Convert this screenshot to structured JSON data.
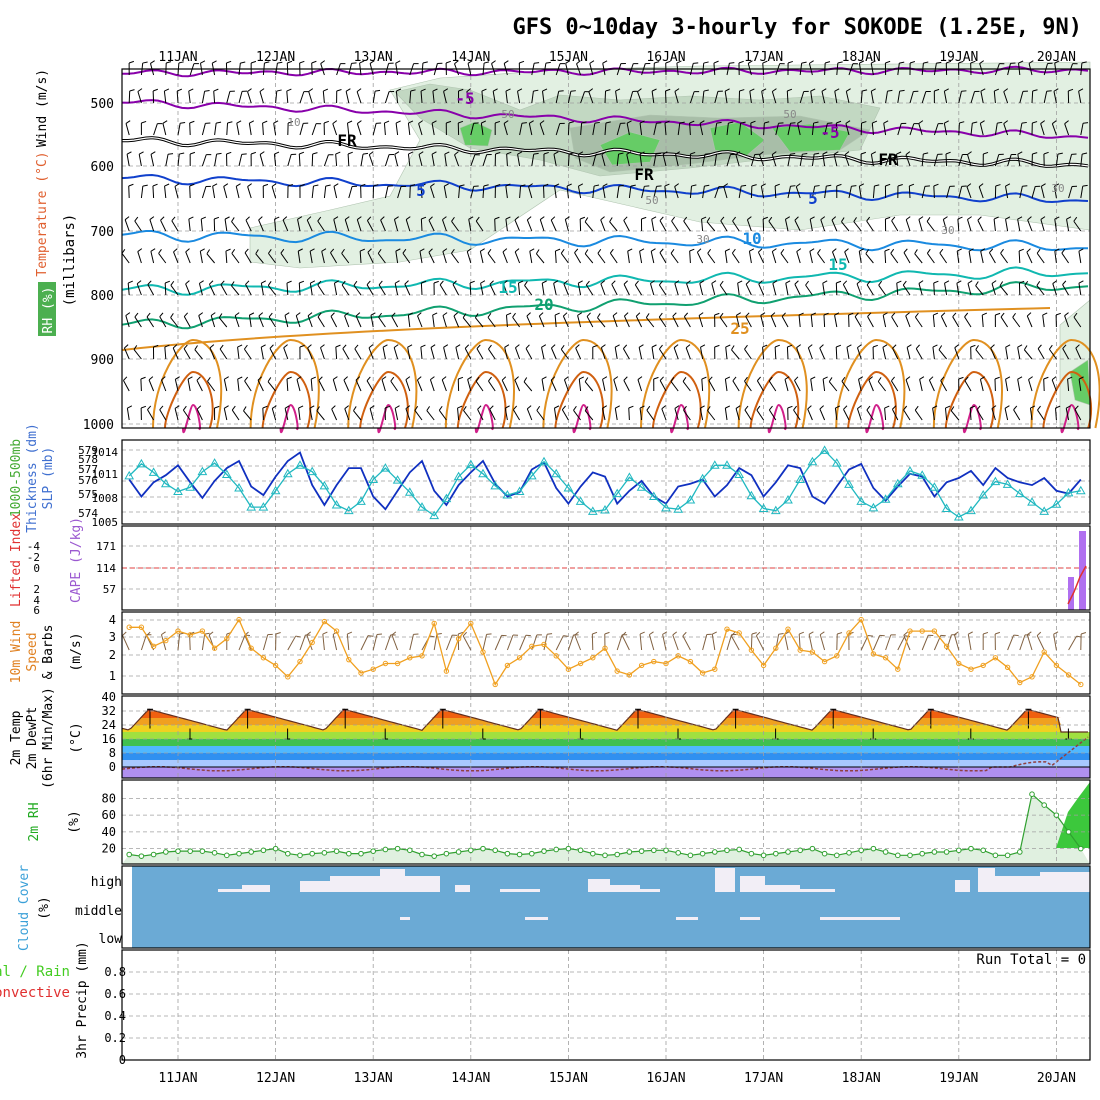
{
  "title": "GFS 0~10day 3-hourly for SOKODE (1.25E, 9N)",
  "colors": {
    "frame": "#000000",
    "grid": "#a0a0a0",
    "rh_fill_light": "#e2f0e2",
    "rh_fill_mid": "#c2d8c2",
    "rh_fill_dark": "#a8bea8",
    "rh_fill_green": "#66cc66",
    "temp_purple": "#8800aa",
    "temp_blue": "#1040cc",
    "temp_lightblue": "#1a8ae0",
    "temp_teal": "#10b8b0",
    "temp_green": "#10a070",
    "temp_orange": "#e09020",
    "temp_dorange": "#d06010",
    "temp_magenta": "#d0208a",
    "thickness_line": "#1030c0",
    "slp_line": "#20b8c0",
    "zero_line": "#e04040",
    "cape_bar": "#b070f0",
    "wind_speed": "#f0a020",
    "wind_barb": "#806040",
    "dewpoint": "#904040",
    "rh2m_line": "#30a030",
    "rh2m_fill": "#e0f0e0",
    "cloud_bg": "#6baad5",
    "cloud_bar": "#f2eef6",
    "label_green": "#22aa22",
    "label_orange": "#e08020",
    "label_purple": "#9b59d0",
    "label_blue": "#4070d0",
    "label_red": "#e03030",
    "label_lime": "#44cc22",
    "label_sky": "#3aa0d8"
  },
  "x_ticks": [
    "11JAN",
    "12JAN",
    "13JAN",
    "14JAN",
    "15JAN",
    "16JAN",
    "17JAN",
    "18JAN",
    "19JAN",
    "20JAN"
  ],
  "panels": {
    "upper_air": {
      "ylabels": [
        "Wind (m/s)",
        "Temperature (°C)",
        "RH (%)",
        "(millibars)"
      ],
      "yticks": [
        "500",
        "600",
        "700",
        "800",
        "900",
        "1000"
      ],
      "contour_labels": [
        "-5",
        "-5",
        "FR",
        "FR",
        "FR",
        "-5",
        "5",
        "5",
        "10",
        "15",
        "15",
        "20",
        "25",
        "10",
        "50",
        "50",
        "50",
        "30",
        "30",
        "30",
        "-5"
      ]
    },
    "thickness": {
      "ylabels": [
        "1000-500mb",
        "Thickness (dm)",
        "SLP (mb)"
      ],
      "yticks_left": [
        "579",
        "578",
        "577",
        "576",
        "575",
        "574"
      ],
      "yticks_right": [
        "1014",
        "1011",
        "1008",
        "1005"
      ]
    },
    "li_cape": {
      "ylabels": [
        "Lifted Index",
        "CAPE (J/kg)"
      ],
      "yticks_left": [
        "-4",
        "-2",
        "0",
        "2",
        "4",
        "6"
      ],
      "yticks_right": [
        "171",
        "114",
        "57"
      ]
    },
    "wind10m": {
      "ylabels": [
        "10m Wind",
        "Speed",
        "& Barbs",
        "(m/s)"
      ],
      "yticks": [
        "4",
        "3",
        "2",
        "1"
      ]
    },
    "temp2m": {
      "ylabels": [
        "2m Temp",
        "2m DewPt",
        "(6hr Min/Max)",
        "(°C)"
      ],
      "yticks": [
        "40",
        "32",
        "24",
        "16",
        "8",
        "0"
      ]
    },
    "rh2m": {
      "ylabels": [
        "2m RH",
        "(%)"
      ],
      "yticks": [
        "80",
        "60",
        "40",
        "20"
      ]
    },
    "cloud": {
      "ylabels": [
        "Cloud Cover",
        "(%)"
      ],
      "levels": [
        "high",
        "middle",
        "low"
      ]
    },
    "precip": {
      "ylabels": [
        "Total / Rain",
        "Convective",
        "3hr Precip (mm)"
      ],
      "yticks": [
        "0.8",
        "0.6",
        "0.4",
        "0.2",
        "0"
      ],
      "run_total": "Run Total = 0"
    }
  },
  "chart_data": [
    {
      "type": "line",
      "name": "1000-500mb thickness",
      "x": [
        "10JAN12",
        "10JAN15",
        "10JAN18",
        "10JAN21",
        "11JAN00",
        "11JAN03",
        "11JAN06",
        "11JAN09",
        "11JAN12",
        "11JAN15",
        "11JAN18",
        "11JAN21",
        "12JAN00",
        "12JAN03",
        "12JAN06",
        "12JAN09",
        "12JAN12",
        "12JAN15",
        "12JAN18",
        "12JAN21",
        "13JAN00",
        "13JAN03",
        "13JAN06",
        "13JAN09",
        "13JAN12",
        "13JAN15",
        "13JAN18",
        "13JAN21",
        "14JAN00",
        "14JAN03",
        "14JAN06",
        "14JAN09",
        "14JAN12",
        "14JAN15",
        "14JAN18",
        "14JAN21",
        "15JAN00",
        "15JAN03",
        "15JAN06",
        "15JAN09",
        "15JAN12",
        "15JAN15",
        "15JAN18",
        "15JAN21",
        "16JAN00",
        "16JAN03",
        "16JAN06",
        "16JAN09",
        "16JAN12",
        "16JAN15",
        "16JAN18",
        "16JAN21",
        "17JAN00",
        "17JAN03",
        "17JAN06",
        "17JAN09",
        "17JAN12",
        "17JAN15",
        "17JAN18",
        "17JAN21",
        "18JAN00",
        "18JAN03",
        "18JAN06",
        "18JAN09",
        "18JAN12",
        "18JAN15",
        "18JAN18",
        "18JAN21",
        "19JAN00",
        "19JAN03",
        "19JAN06",
        "19JAN09",
        "19JAN12",
        "19JAN15",
        "19JAN18",
        "19JAN21",
        "20JAN00",
        "20JAN03",
        "20JAN06"
      ],
      "values": [
        577.0,
        575.8,
        576.8,
        577.3,
        578.0,
        576.8,
        575.7,
        576.9,
        577.8,
        578.3,
        576.5,
        575.9,
        577.2,
        578.3,
        578.9,
        576.6,
        575.2,
        576.6,
        577.8,
        577.8,
        575.8,
        574.9,
        576.2,
        577.5,
        578.3,
        576.2,
        575.2,
        576.6,
        577.5,
        578.3,
        576.7,
        575.8,
        576.1,
        577.7,
        578.2,
        576.4,
        575.3,
        576.5,
        577.5,
        577.2,
        575.3,
        576.2,
        576.9,
        575.8,
        575.3,
        576.5,
        576.7,
        577.0,
        575.8,
        576.6,
        577.8,
        577.3,
        575.8,
        576.8,
        578.0,
        577.8,
        575.8,
        575.3,
        576.5,
        577.7,
        578.1,
        576.4,
        575.5,
        576.5,
        577.4,
        577.2,
        575.8,
        576.8,
        577.1,
        577.6,
        576.6,
        577.8,
        577.1,
        576.8,
        576.6,
        577.1,
        576.2,
        576.0,
        577.0
      ],
      "ylabel": "1000-500mb Thickness (dm)",
      "ylim": [
        574,
        579.5
      ]
    },
    {
      "type": "line",
      "name": "SLP",
      "x": [
        "10JAN12",
        "10JAN15",
        "10JAN18",
        "10JAN21",
        "11JAN00",
        "11JAN03",
        "11JAN06",
        "11JAN09",
        "11JAN12",
        "11JAN15",
        "11JAN18",
        "11JAN21",
        "12JAN00",
        "12JAN03",
        "12JAN06",
        "12JAN09",
        "12JAN12",
        "12JAN15",
        "12JAN18",
        "12JAN21",
        "13JAN00",
        "13JAN03",
        "13JAN06",
        "13JAN09",
        "13JAN12",
        "13JAN15",
        "13JAN18",
        "13JAN21",
        "14JAN00",
        "14JAN03",
        "14JAN06",
        "14JAN09",
        "14JAN12",
        "14JAN15",
        "14JAN18",
        "14JAN21",
        "15JAN00",
        "15JAN03",
        "15JAN06",
        "15JAN09",
        "15JAN12",
        "15JAN15",
        "15JAN18",
        "15JAN21",
        "16JAN00",
        "16JAN03",
        "16JAN06",
        "16JAN09",
        "16JAN12",
        "16JAN15",
        "16JAN18",
        "16JAN21",
        "17JAN00",
        "17JAN03",
        "17JAN06",
        "17JAN09",
        "17JAN12",
        "17JAN15",
        "17JAN18",
        "17JAN21",
        "18JAN00",
        "18JAN03",
        "18JAN06",
        "18JAN09",
        "18JAN12",
        "18JAN15",
        "18JAN18",
        "18JAN21",
        "19JAN00",
        "19JAN03",
        "19JAN06",
        "19JAN09",
        "19JAN12",
        "19JAN15",
        "19JAN18",
        "19JAN21",
        "20JAN00",
        "20JAN03",
        "20JAN06"
      ],
      "values": [
        1011.0,
        1012.7,
        1011.5,
        1009.9,
        1008.8,
        1009.4,
        1011.6,
        1012.8,
        1011.2,
        1009.3,
        1006.6,
        1006.6,
        1008.9,
        1011.3,
        1012.5,
        1011.6,
        1009.6,
        1006.9,
        1006.1,
        1007.4,
        1010.5,
        1012.1,
        1010.4,
        1008.7,
        1006.6,
        1005.4,
        1007.8,
        1010.9,
        1012.6,
        1011.3,
        1009.6,
        1008.3,
        1008.8,
        1011.0,
        1013.0,
        1011.3,
        1009.3,
        1007.4,
        1006.0,
        1006.2,
        1008.5,
        1010.8,
        1009.4,
        1008.1,
        1006.5,
        1006.3,
        1007.6,
        1010.6,
        1012.5,
        1012.5,
        1011.2,
        1008.2,
        1006.4,
        1006.1,
        1007.6,
        1010.5,
        1013.0,
        1014.6,
        1012.8,
        1009.8,
        1007.4,
        1006.5,
        1007.7,
        1009.9,
        1011.7,
        1011.1,
        1009.4,
        1006.4,
        1005.2,
        1006.1,
        1008.3,
        1010.2,
        1009.8,
        1008.5,
        1007.3,
        1006.0,
        1007.0,
        1008.6,
        1008.9
      ],
      "ylabel": "SLP (mb)",
      "ylim": [
        1004.5,
        1015.5
      ]
    },
    {
      "type": "line",
      "name": "10m wind speed",
      "x": [
        "10JAN12",
        "10JAN15",
        "10JAN18",
        "10JAN21",
        "11JAN00",
        "11JAN03",
        "11JAN06",
        "11JAN09",
        "11JAN12",
        "11JAN15",
        "11JAN18",
        "11JAN21",
        "12JAN00",
        "12JAN03",
        "12JAN06",
        "12JAN09",
        "12JAN12",
        "12JAN15",
        "12JAN18",
        "12JAN21",
        "13JAN00",
        "13JAN03",
        "13JAN06",
        "13JAN09",
        "13JAN12",
        "13JAN15",
        "13JAN18",
        "13JAN21",
        "14JAN00",
        "14JAN03",
        "14JAN06",
        "14JAN09",
        "14JAN12",
        "14JAN15",
        "14JAN18",
        "14JAN21",
        "15JAN00",
        "15JAN03",
        "15JAN06",
        "15JAN09",
        "15JAN12",
        "15JAN15",
        "15JAN18",
        "15JAN21",
        "16JAN00",
        "16JAN03",
        "16JAN06",
        "16JAN09",
        "16JAN12",
        "16JAN15",
        "16JAN18",
        "16JAN21",
        "17JAN00",
        "17JAN03",
        "17JAN06",
        "17JAN09",
        "17JAN12",
        "17JAN15",
        "17JAN18",
        "17JAN21",
        "18JAN00",
        "18JAN03",
        "18JAN06",
        "18JAN09",
        "18JAN12",
        "18JAN15",
        "18JAN18",
        "18JAN21",
        "19JAN00",
        "19JAN03",
        "19JAN06",
        "19JAN09",
        "19JAN12",
        "19JAN15",
        "19JAN18",
        "19JAN21",
        "20JAN00",
        "20JAN03",
        "20JAN06"
      ],
      "values": [
        3.5,
        3.5,
        2.5,
        2.8,
        3.3,
        3.1,
        3.3,
        2.4,
        2.9,
        3.9,
        2.4,
        1.9,
        1.5,
        0.9,
        1.7,
        2.7,
        3.8,
        3.3,
        1.8,
        1.1,
        1.3,
        1.6,
        1.6,
        1.9,
        2.0,
        3.7,
        1.2,
        2.9,
        3.7,
        2.2,
        0.5,
        1.5,
        1.9,
        2.5,
        2.6,
        2.0,
        1.3,
        1.6,
        1.9,
        2.4,
        1.2,
        1.0,
        1.5,
        1.7,
        1.6,
        2.0,
        1.7,
        1.1,
        1.3,
        3.4,
        3.2,
        2.3,
        1.5,
        2.4,
        3.4,
        2.3,
        2.2,
        1.7,
        2.0,
        3.2,
        3.9,
        2.1,
        1.9,
        1.3,
        3.3,
        3.3,
        3.3,
        2.5,
        1.6,
        1.3,
        1.5,
        1.9,
        1.4,
        0.6,
        0.9,
        2.2,
        1.5,
        1.0,
        0.5
      ],
      "ylabel": "10m Wind Speed (m/s)",
      "ylim": [
        0,
        4.3
      ]
    },
    {
      "type": "line",
      "name": "2m RH",
      "x": [
        "10JAN12",
        "10JAN15",
        "10JAN18",
        "10JAN21",
        "11JAN00",
        "11JAN03",
        "11JAN06",
        "11JAN09",
        "11JAN12",
        "11JAN15",
        "11JAN18",
        "11JAN21",
        "12JAN00",
        "12JAN03",
        "12JAN06",
        "12JAN09",
        "12JAN12",
        "12JAN15",
        "12JAN18",
        "12JAN21",
        "13JAN00",
        "13JAN03",
        "13JAN06",
        "13JAN09",
        "13JAN12",
        "13JAN15",
        "13JAN18",
        "13JAN21",
        "14JAN00",
        "14JAN03",
        "14JAN06",
        "14JAN09",
        "14JAN12",
        "14JAN15",
        "14JAN18",
        "14JAN21",
        "15JAN00",
        "15JAN03",
        "15JAN06",
        "15JAN09",
        "15JAN12",
        "15JAN15",
        "15JAN18",
        "15JAN21",
        "16JAN00",
        "16JAN03",
        "16JAN06",
        "16JAN09",
        "16JAN12",
        "16JAN15",
        "16JAN18",
        "16JAN21",
        "17JAN00",
        "17JAN03",
        "17JAN06",
        "17JAN09",
        "17JAN12",
        "17JAN15",
        "17JAN18",
        "17JAN21",
        "18JAN00",
        "18JAN03",
        "18JAN06",
        "18JAN09",
        "18JAN12",
        "18JAN15",
        "18JAN18",
        "18JAN21",
        "19JAN00",
        "19JAN03",
        "19JAN06",
        "19JAN09",
        "19JAN12",
        "19JAN15",
        "19JAN18",
        "19JAN21",
        "20JAN00",
        "20JAN03",
        "20JAN06"
      ],
      "values": [
        13,
        11,
        13,
        16,
        17,
        17,
        17,
        15,
        12,
        14,
        16,
        18,
        20,
        14,
        12,
        14,
        15,
        17,
        14,
        14,
        17,
        19,
        20,
        18,
        13,
        11,
        14,
        16,
        18,
        20,
        18,
        14,
        13,
        14,
        17,
        19,
        20,
        18,
        14,
        12,
        13,
        16,
        17,
        18,
        18,
        15,
        12,
        14,
        16,
        18,
        19,
        14,
        12,
        14,
        16,
        18,
        20,
        14,
        12,
        15,
        18,
        20,
        16,
        12,
        12,
        14,
        16,
        16,
        18,
        20,
        18,
        12,
        12,
        16,
        85,
        72,
        60,
        40,
        20
      ],
      "ylabel": "2m RH (%)",
      "ylim": [
        0,
        100
      ]
    }
  ]
}
